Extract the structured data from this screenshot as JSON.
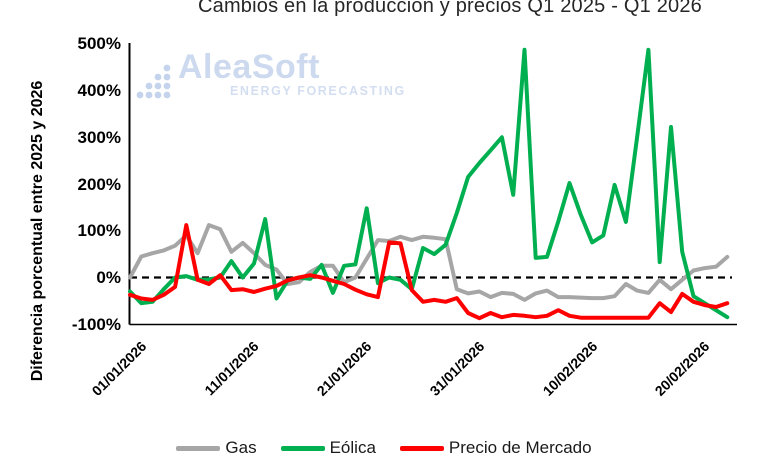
{
  "title": "Cambios en la producción y precios Q1 2025 - Q1 2026",
  "watermark": {
    "name": "AleaSoft",
    "subtitle": "ENERGY FORECASTING",
    "color": "#ccd9ee"
  },
  "y_axis": {
    "title": "Diferencia porcentual entre 2025 y 2026",
    "tick_labels": [
      "500%",
      "400%",
      "300%",
      "200%",
      "100%",
      "0%",
      "-100%"
    ]
  },
  "x_axis": {
    "tick_labels": [
      "01/01/2026",
      "11/01/2026",
      "21/01/2026",
      "31/01/2026",
      "10/02/2026",
      "20/02/2026"
    ]
  },
  "legend": [
    "Gas",
    "Eólica",
    "Precio de Mercado"
  ],
  "chart_data": {
    "type": "line",
    "title": "Cambios en la producción y precios Q1 2025 - Q1 2026",
    "ylabel": "Diferencia porcentual entre 2025 y 2026",
    "ylim": [
      -100,
      500
    ],
    "y_ticks_pct": [
      500,
      400,
      300,
      200,
      100,
      0,
      -100
    ],
    "x_unit": "day",
    "x_start_label": "01/01/2026",
    "x_tick_positions": [
      0,
      10,
      20,
      30,
      40,
      50
    ],
    "x_tick_labels": [
      "01/01/2026",
      "11/01/2026",
      "21/01/2026",
      "31/01/2026",
      "10/02/2026",
      "20/02/2026"
    ],
    "zero_baseline_style": "dashed",
    "grid": false,
    "legend_position": "bottom",
    "series": [
      {
        "name": "Gas",
        "color": "#A6A6A6",
        "values": [
          0,
          45,
          52,
          58,
          68,
          90,
          52,
          112,
          103,
          55,
          74,
          52,
          27,
          17,
          -14,
          -10,
          12,
          25,
          25,
          -10,
          0,
          40,
          80,
          78,
          87,
          80,
          87,
          85,
          82,
          -25,
          -34,
          -30,
          -42,
          -33,
          -35,
          -48,
          -34,
          -28,
          -42,
          -42,
          -43,
          -44,
          -44,
          -40,
          -14,
          -28,
          -33,
          -5,
          -25,
          -5,
          15,
          20,
          23,
          44
        ]
      },
      {
        "name": "Eólica",
        "color": "#00B050",
        "values": [
          -30,
          -55,
          -52,
          -25,
          0,
          3,
          -5,
          -4,
          0,
          35,
          0,
          30,
          125,
          -45,
          -6,
          0,
          -3,
          27,
          -33,
          25,
          28,
          148,
          -12,
          0,
          -5,
          -25,
          63,
          50,
          70,
          138,
          215,
          245,
          272,
          300,
          177,
          487,
          42,
          44,
          120,
          202,
          134,
          75,
          90,
          198,
          119,
          300,
          487,
          33,
          322,
          55,
          -40,
          -55,
          -70,
          -85
        ]
      },
      {
        "name": "Precio de Mercado",
        "color": "#FF0000",
        "values": [
          -37,
          -45,
          -48,
          -37,
          -20,
          112,
          -5,
          -14,
          5,
          -27,
          -25,
          -31,
          -24,
          -18,
          -6,
          0,
          5,
          0,
          -7,
          -14,
          -26,
          -36,
          -42,
          75,
          73,
          -27,
          -52,
          -48,
          -52,
          -44,
          -76,
          -87,
          -76,
          -85,
          -80,
          -82,
          -85,
          -82,
          -70,
          -82,
          -86,
          -86,
          -86,
          -86,
          -86,
          -86,
          -86,
          -55,
          -74,
          -35,
          -52,
          -59,
          -63,
          -55
        ]
      }
    ]
  }
}
